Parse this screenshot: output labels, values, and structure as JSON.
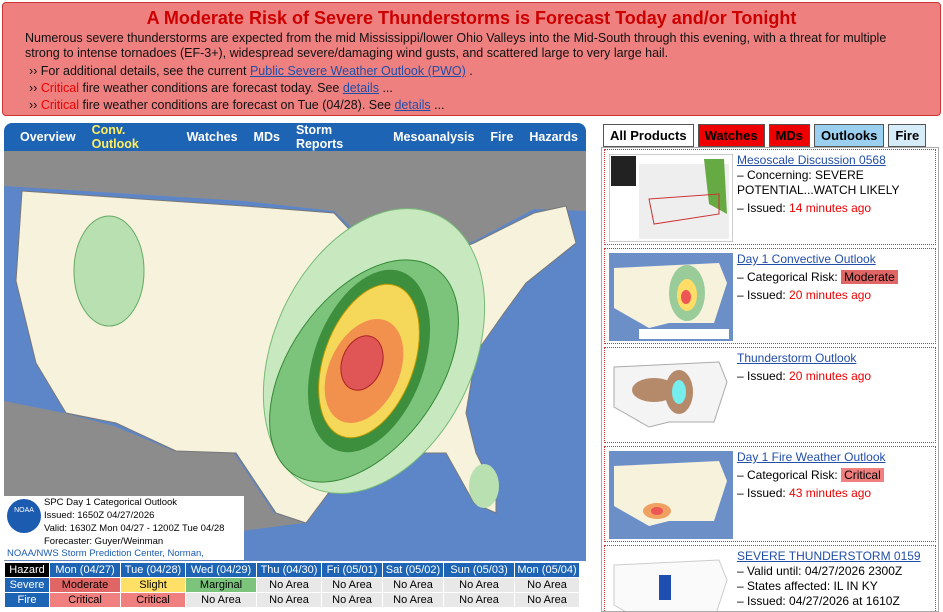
{
  "banner": {
    "title": "A Moderate Risk of Severe Thunderstorms is Forecast Today and/or Tonight",
    "text": "Numerous severe thunderstorms are expected from the mid Mississippi/lower Ohio Valleys into the Mid-South through this evening, with a threat for multiple strong to intense tornadoes (EF-3+), widespread severe/damaging wind gusts, and scattered large to very large hail.",
    "bullets": [
      [
        {
          "t": "›› For additional details, see the current ",
          "s": "plain"
        },
        {
          "t": "Public Severe Weather Outlook (PWO)",
          "s": "link"
        },
        {
          "t": ".",
          "s": "plain"
        }
      ],
      [
        {
          "t": "››",
          "s": "plain"
        },
        {
          "t": "Critical",
          "s": "red"
        },
        {
          "t": "fire weather conditions are forecast today. See ",
          "s": "plain"
        },
        {
          "t": "details",
          "s": "link"
        },
        {
          "t": "...",
          "s": "plain"
        }
      ],
      [
        {
          "t": "››",
          "s": "plain"
        },
        {
          "t": "Critical",
          "s": "red"
        },
        {
          "t": "fire weather conditions are forecast on Tue (04/28). See ",
          "s": "plain"
        },
        {
          "t": "details",
          "s": "link"
        },
        {
          "t": "...",
          "s": "plain"
        }
      ]
    ]
  },
  "nav": [
    "Overview",
    "Conv. Outlook",
    "Watches",
    "MDs",
    "Storm Reports",
    "Mesoanalysis",
    "Fire",
    "Hazards"
  ],
  "map_legend": {
    "title": "SPC Day 1 Categorical Outlook",
    "issued": "Issued: 1650Z 04/27/2026",
    "valid": "Valid: 1630Z Mon 04/27 - 1200Z Tue 04/28",
    "forecaster": "Forecaster: Guyer/Weinman",
    "credit": "NOAA/NWS Storm Prediction Center, Norman, Oklahoma",
    "logo": "NOAA"
  },
  "table": {
    "header": [
      "Hazard",
      "Mon (04/27)",
      "Tue (04/28)",
      "Wed (04/29)",
      "Thu (04/30)",
      "Fri (05/01)",
      "Sat (05/02)",
      "Sun (05/03)",
      "Mon (05/04)"
    ],
    "rows": [
      [
        "Severe",
        "Moderate",
        "Slight",
        "Marginal",
        "No Area",
        "No Area",
        "No Area",
        "No Area",
        "No Area"
      ],
      [
        "Fire",
        "Critical",
        "Critical",
        "No Area",
        "No Area",
        "No Area",
        "No Area",
        "No Area",
        "No Area"
      ]
    ]
  },
  "tabs": [
    "All Products",
    "Watches",
    "MDs",
    "Outlooks",
    "Fire"
  ],
  "products": [
    {
      "title": "Mesoscale Discussion 0568",
      "lines": [
        "– Concerning: SEVERE POTENTIAL...WATCH LIKELY"
      ],
      "issued_label": "– Issued:",
      "issued_ago": "14 minutes ago"
    },
    {
      "title": "Day 1 Convective Outlook",
      "risk_label": "– Categorical Risk:",
      "risk": "Moderate",
      "issued_label": "– Issued:",
      "issued_ago": "20 minutes ago"
    },
    {
      "title": "Thunderstorm Outlook",
      "issued_label": "– Issued:",
      "issued_ago": "20 minutes ago"
    },
    {
      "title": "Day 1 Fire Weather Outlook",
      "risk_label": "– Categorical Risk:",
      "risk": "Critical",
      "issued_label": "– Issued:",
      "issued_ago": "43 minutes ago"
    },
    {
      "title": "SEVERE THUNDERSTORM 0159",
      "lines": [
        "– Valid until: 04/27/2026 2300Z",
        "– States affected: IL IN KY",
        "– Issued: 04/27/2026 at 1610Z"
      ]
    }
  ]
}
